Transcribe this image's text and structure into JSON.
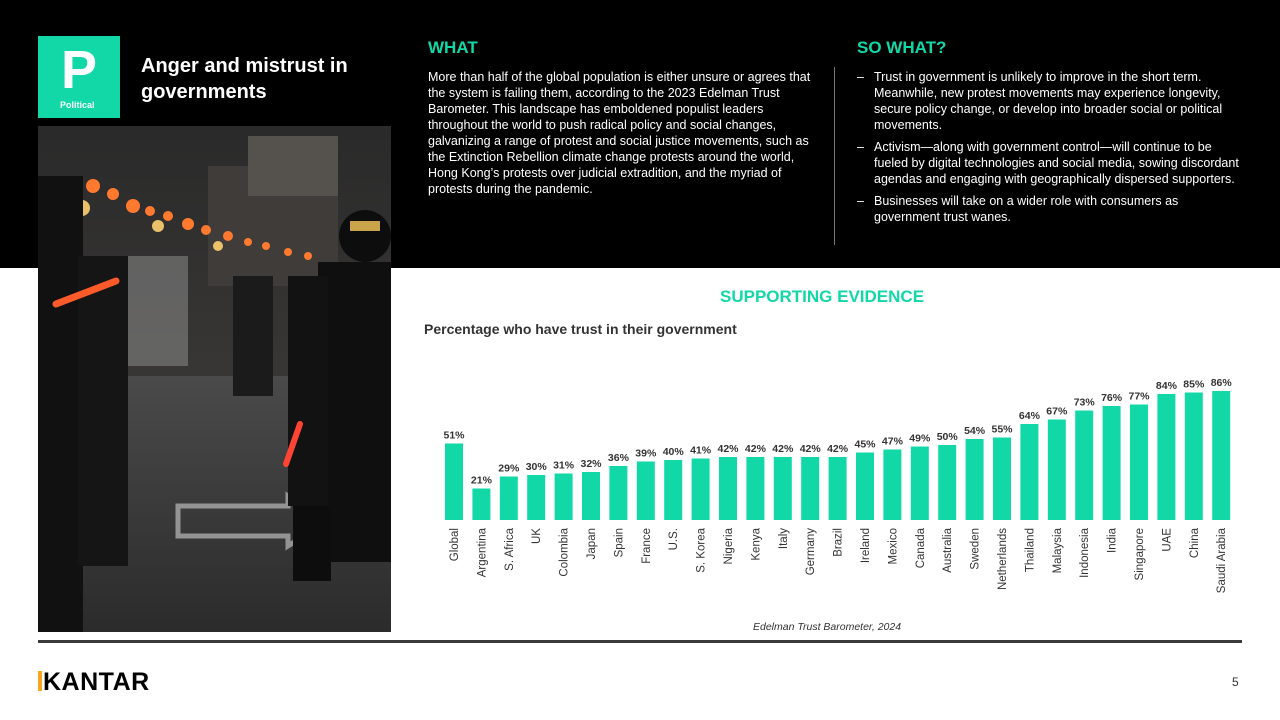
{
  "badge": {
    "letter": "P",
    "label": "Political"
  },
  "title": "Anger and mistrust in governments",
  "what": {
    "heading": "WHAT",
    "body": "More than half of the global population is either unsure or agrees that the system is failing them, according to the 2023 Edelman Trust Barometer. This landscape has emboldened populist leaders throughout the world to push radical policy and social changes, galvanizing a range of protest and social justice movements, such as the Extinction Rebellion climate change protests around the world, Hong Kong’s protests over judicial extradition, and the myriad of protests during the pandemic."
  },
  "so_what": {
    "heading": "SO WHAT?",
    "bullets": [
      "Trust in government is unlikely to improve in the short term. Meanwhile, new protest movements may experience longevity, secure policy change, or develop into broader social or political movements.",
      "Activism—along with government control—will continue to be fueled by digital technologies and social media, sowing discordant agendas and engaging with geographically dispersed supporters.",
      "Businesses will take on a wider role with consumers as government trust wanes."
    ]
  },
  "evidence": {
    "heading": "SUPPORTING EVIDENCE"
  },
  "chart_data": {
    "type": "bar",
    "title": "Percentage who have trust in their government",
    "categories": [
      "Global",
      "Argentina",
      "S. Africa",
      "UK",
      "Colombia",
      "Japan",
      "Spain",
      "France",
      "U.S.",
      "S. Korea",
      "Nigeria",
      "Kenya",
      "Italy",
      "Germany",
      "Brazil",
      "Ireland",
      "Mexico",
      "Canada",
      "Australia",
      "Sweden",
      "Netherlands",
      "Thailand",
      "Malaysia",
      "Indonesia",
      "India",
      "Singapore",
      "UAE",
      "China",
      "Saudi Arabia"
    ],
    "values": [
      51,
      21,
      29,
      30,
      31,
      32,
      36,
      39,
      40,
      41,
      42,
      42,
      42,
      42,
      42,
      45,
      47,
      49,
      50,
      54,
      55,
      64,
      67,
      73,
      76,
      77,
      84,
      85,
      86
    ],
    "labels": [
      "51%",
      "21%",
      "29%",
      "30%",
      "31%",
      "32%",
      "36%",
      "39%",
      "40%",
      "41%",
      "42%",
      "42%",
      "42%",
      "42%",
      "42%",
      "45%",
      "47%",
      "49%",
      "50%",
      "54%",
      "55%",
      "64%",
      "67%",
      "73%",
      "76%",
      "77%",
      "84%",
      "85%",
      "86%"
    ],
    "unit": "%",
    "ylim": [
      0,
      100
    ],
    "xlabel": "",
    "ylabel": "",
    "grid": false,
    "bar_color": "#12d8a8"
  },
  "source": "Edelman Trust Barometer, 2024",
  "footer": {
    "logo": "KANTAR",
    "page_number": "5"
  }
}
